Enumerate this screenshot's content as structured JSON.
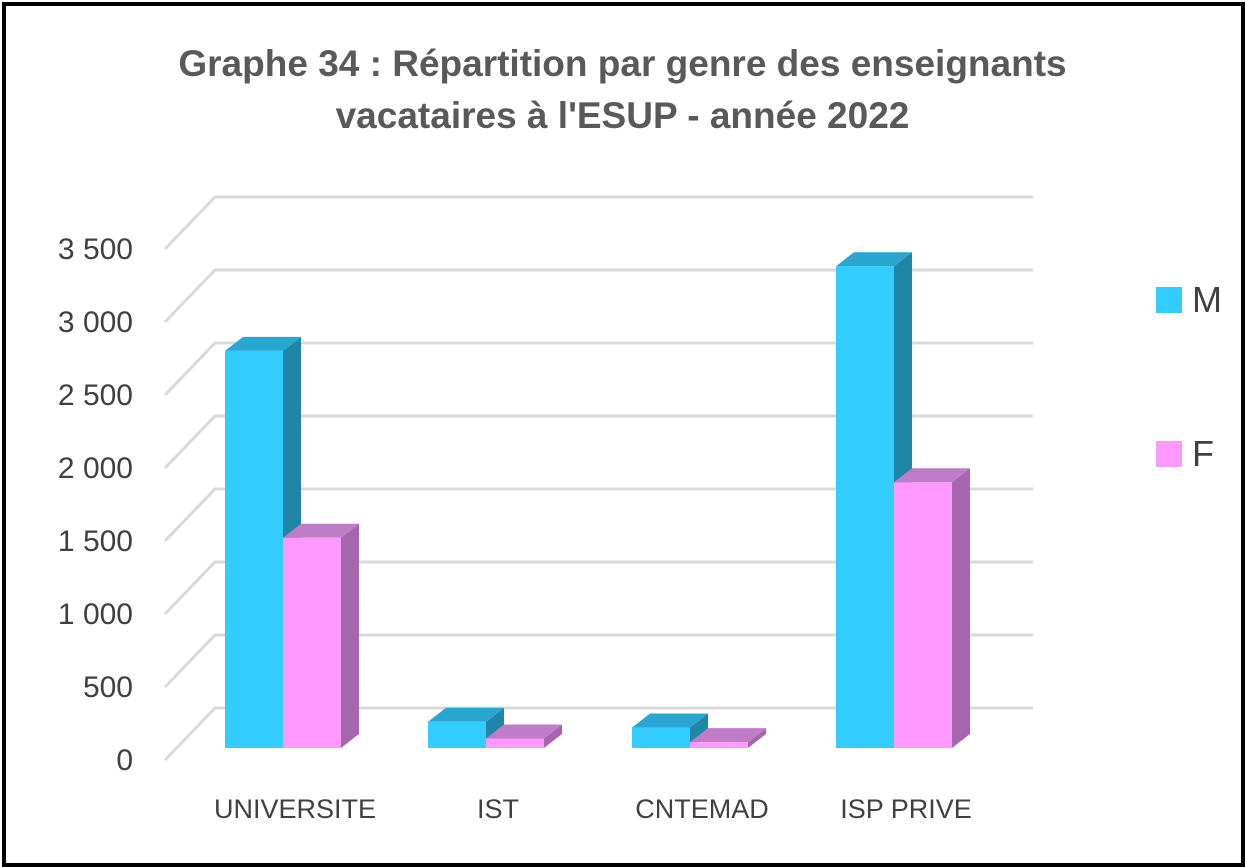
{
  "chart_data": {
    "type": "bar",
    "title_line1": "Graphe 34 : Répartition par genre des enseignants",
    "title_line2": "vacataires à l'ESUP - année 2022",
    "categories": [
      "UNIVERSITE",
      "IST",
      "CNTEMAD",
      "ISP PRIVE"
    ],
    "series": [
      {
        "name": "M",
        "values": [
          2720,
          180,
          140,
          3300
        ]
      },
      {
        "name": "F",
        "values": [
          1440,
          65,
          40,
          1820
        ]
      }
    ],
    "ylim": [
      0,
      3500
    ],
    "yticks": [
      "0",
      "500",
      "1 000",
      "1 500",
      "2 000",
      "2 500",
      "3 000",
      "3 500"
    ],
    "grid": true,
    "legend_position": "right",
    "colors": {
      "M": {
        "front": "#33CCFF",
        "top": "#2AA7D1",
        "side": "#1F86A8"
      },
      "F": {
        "front": "#FF99FF",
        "top": "#C07CC9",
        "side": "#A666AE"
      },
      "grid": "#D9D9D9"
    }
  }
}
